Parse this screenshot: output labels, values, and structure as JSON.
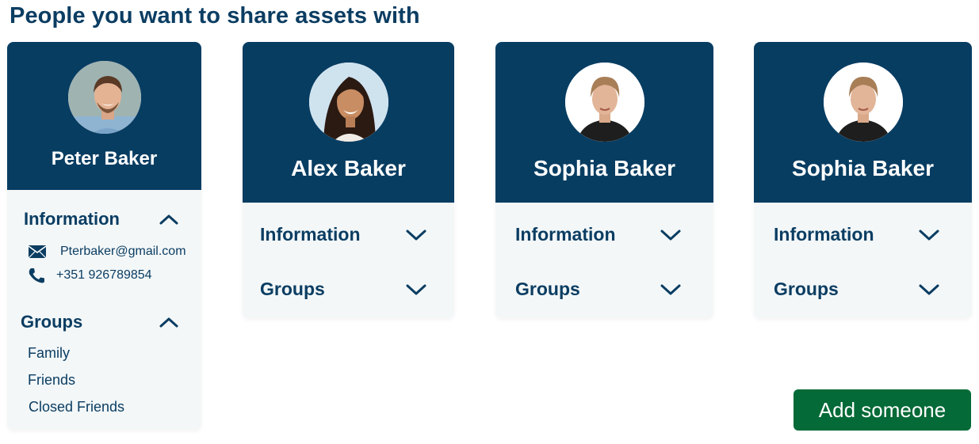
{
  "page": {
    "title": "People you want to share assets with"
  },
  "cards": [
    {
      "name": "Peter Baker",
      "information_label": "Information",
      "email": "Pterbaker@gmail.com",
      "phone": "+351 926789854",
      "groups_label": "Groups",
      "groups": [
        "Family",
        "Friends",
        "Closed Friends"
      ]
    },
    {
      "name": "Alex Baker",
      "information_label": "Information",
      "groups_label": "Groups"
    },
    {
      "name": "Sophia Baker",
      "information_label": "Information",
      "groups_label": "Groups"
    },
    {
      "name": "Sophia Baker",
      "information_label": "Information",
      "groups_label": "Groups"
    }
  ],
  "actions": {
    "add_label": "Add someone"
  },
  "icons": {
    "expanded": "chevron-up-icon",
    "collapsed": "chevron-down-icon",
    "email": "envelope-icon",
    "phone": "phone-icon"
  },
  "colors": {
    "header": "#083d62",
    "text": "#0b3d62",
    "card_body": "#f3f7f8",
    "button": "#046a37"
  }
}
